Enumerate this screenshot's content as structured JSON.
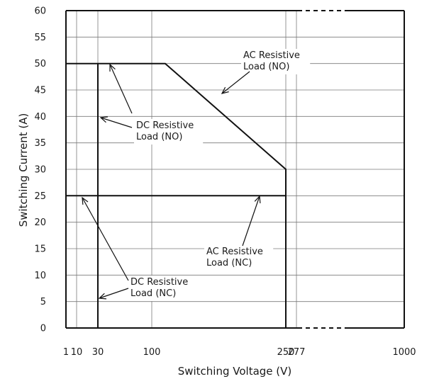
{
  "chart_data": {
    "type": "line",
    "xlabel": "Switching Voltage (V)",
    "ylabel": "Switching Current (A)",
    "x_ticks": [
      {
        "value": 1,
        "label": "1"
      },
      {
        "value": 10,
        "label": "10"
      },
      {
        "value": 30,
        "label": "30"
      },
      {
        "value": 100,
        "label": "100"
      },
      {
        "value": 250,
        "label": "250"
      },
      {
        "value": 277,
        "label": "277"
      },
      {
        "value": 1000,
        "label": "1000"
      }
    ],
    "y_ticks": [
      0,
      5,
      10,
      15,
      20,
      25,
      30,
      35,
      40,
      45,
      50,
      55,
      60
    ],
    "xlim": [
      1,
      1000
    ],
    "ylim": [
      0,
      60
    ],
    "grid": true,
    "series": [
      {
        "key": "ac_no",
        "points": [
          [
            1,
            50
          ],
          [
            115,
            50
          ],
          [
            250,
            30
          ],
          [
            250,
            0
          ]
        ]
      },
      {
        "key": "ac_nc",
        "points": [
          [
            1,
            25
          ],
          [
            250,
            25
          ]
        ]
      },
      {
        "key": "dc_no",
        "points": [
          [
            30,
            50
          ],
          [
            30,
            0
          ]
        ]
      },
      {
        "key": "dc_nc",
        "points": [
          [
            30,
            25
          ],
          [
            30,
            0
          ]
        ]
      }
    ],
    "annotations": [
      {
        "key": "ac_no",
        "lines": [
          "AC Resistive",
          "Load (NO)"
        ]
      },
      {
        "key": "dc_no",
        "lines": [
          "DC Resistive",
          "Load (NO)"
        ]
      },
      {
        "key": "ac_nc",
        "lines": [
          "AC Resistive",
          "Load (NC)"
        ]
      },
      {
        "key": "dc_nc",
        "lines": [
          "DC Resistive",
          "Load (NC)"
        ]
      }
    ]
  }
}
